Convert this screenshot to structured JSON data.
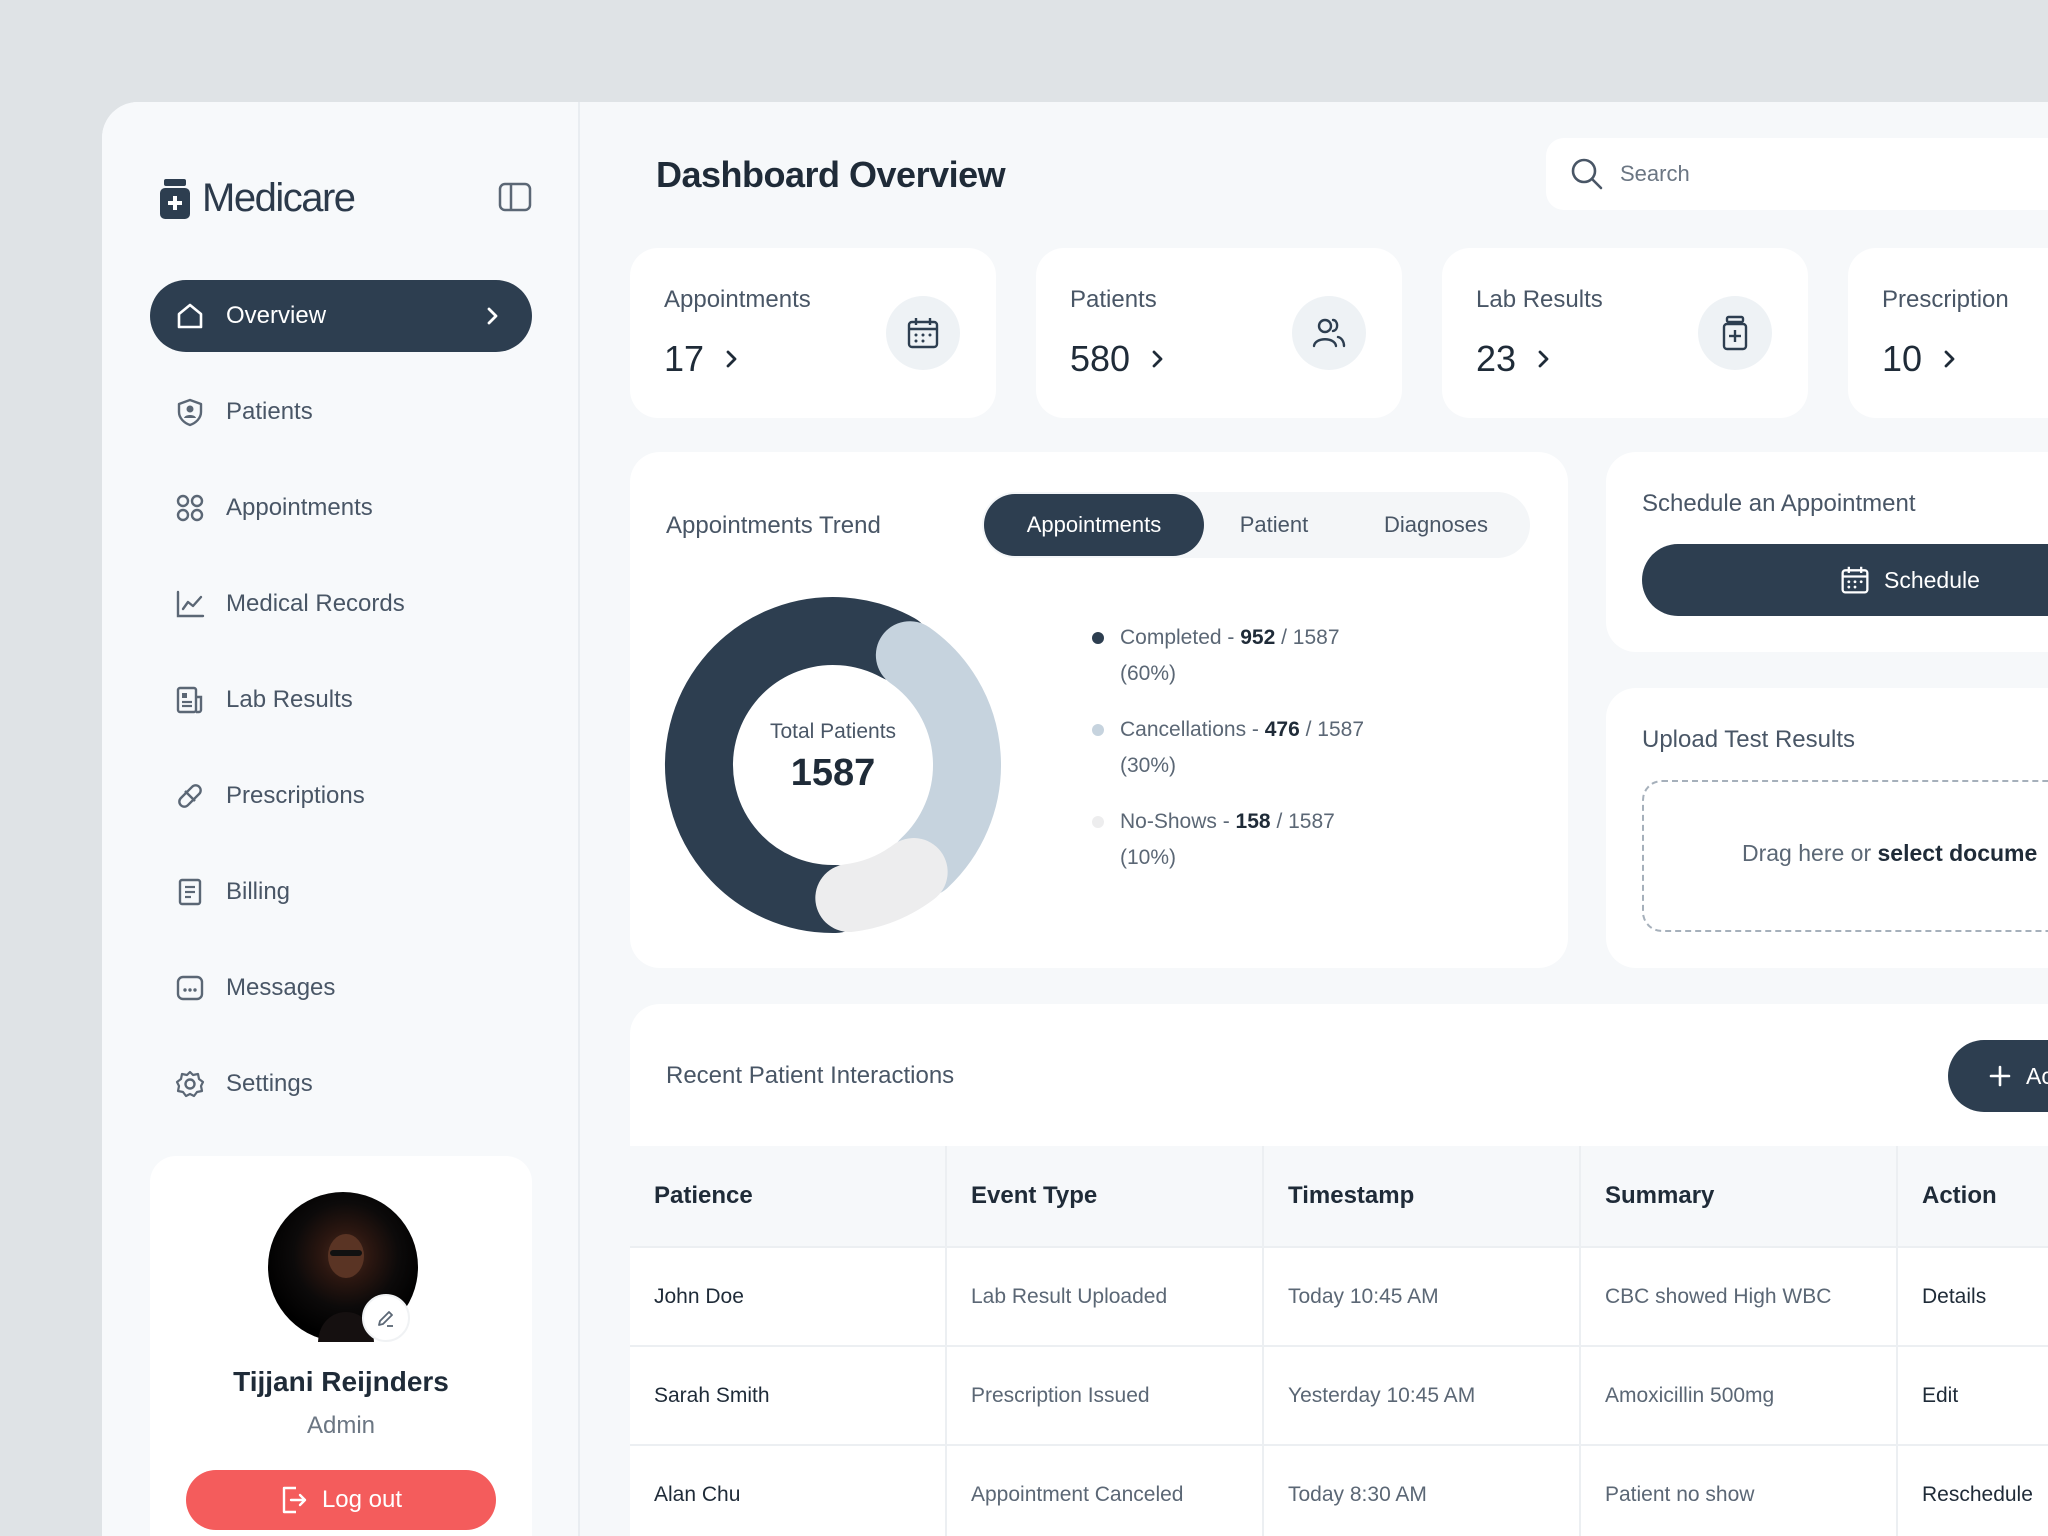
{
  "brand": {
    "name": "Medicare"
  },
  "nav": {
    "items": [
      {
        "label": "Overview",
        "icon": "home-icon",
        "active": true
      },
      {
        "label": "Patients",
        "icon": "shield-user-icon"
      },
      {
        "label": "Appointments",
        "icon": "grid-circles-icon"
      },
      {
        "label": "Medical Records",
        "icon": "line-chart-icon"
      },
      {
        "label": "Lab Results",
        "icon": "report-icon"
      },
      {
        "label": "Prescriptions",
        "icon": "pill-icon"
      },
      {
        "label": "Billing",
        "icon": "document-icon"
      },
      {
        "label": "Messages",
        "icon": "message-icon"
      },
      {
        "label": "Settings",
        "icon": "gear-icon"
      }
    ]
  },
  "profile": {
    "name": "Tijjani Reijnders",
    "role": "Admin",
    "logout_label": "Log out"
  },
  "header": {
    "title": "Dashboard Overview",
    "search_placeholder": "Search"
  },
  "stats": [
    {
      "label": "Appointments",
      "value": "17",
      "icon": "calendar-icon"
    },
    {
      "label": "Patients",
      "value": "580",
      "icon": "users-icon"
    },
    {
      "label": "Lab Results",
      "value": "23",
      "icon": "medicine-jar-icon"
    },
    {
      "label": "Prescription",
      "value": "10",
      "icon": "prescription-icon"
    }
  ],
  "trend": {
    "title": "Appointments Trend",
    "tabs": [
      "Appointments",
      "Patient",
      "Diagnoses"
    ],
    "active_tab": 0,
    "center_label": "Total Patients",
    "center_value": "1587",
    "legend": [
      {
        "label": "Completed",
        "value": "952",
        "total": "/ 1587",
        "percent": "(60%)",
        "share": 0.6,
        "color": "#2d3e50"
      },
      {
        "label": "Cancellations",
        "value": "476",
        "total": "/ 1587",
        "percent": "(30%)",
        "share": 0.3,
        "color": "#c6d3de"
      },
      {
        "label": "No-Shows",
        "value": "158",
        "total": "/ 1587",
        "percent": "(10%)",
        "share": 0.1,
        "color": "#ededee"
      }
    ]
  },
  "schedule": {
    "title": "Schedule an Appointment",
    "button_label": "Schedule"
  },
  "upload": {
    "title": "Upload Test Results",
    "drop_text": "Drag here or",
    "drop_link": "select docume"
  },
  "interactions": {
    "title": "Recent Patient Interactions",
    "add_label": "Ac",
    "columns": [
      "Patience",
      "Event Type",
      "Timestamp",
      "Summary",
      "Action"
    ],
    "rows": [
      [
        "John Doe",
        "Lab Result Uploaded",
        "Today 10:45 AM",
        "CBC showed High WBC",
        "Details"
      ],
      [
        "Sarah Smith",
        "Prescription Issued",
        "Yesterday 10:45 AM",
        "Amoxicillin 500mg",
        "Edit"
      ],
      [
        "Alan Chu",
        "Appointment Canceled",
        "Today 8:30 AM",
        "Patient no show",
        "Reschedule"
      ]
    ]
  }
}
